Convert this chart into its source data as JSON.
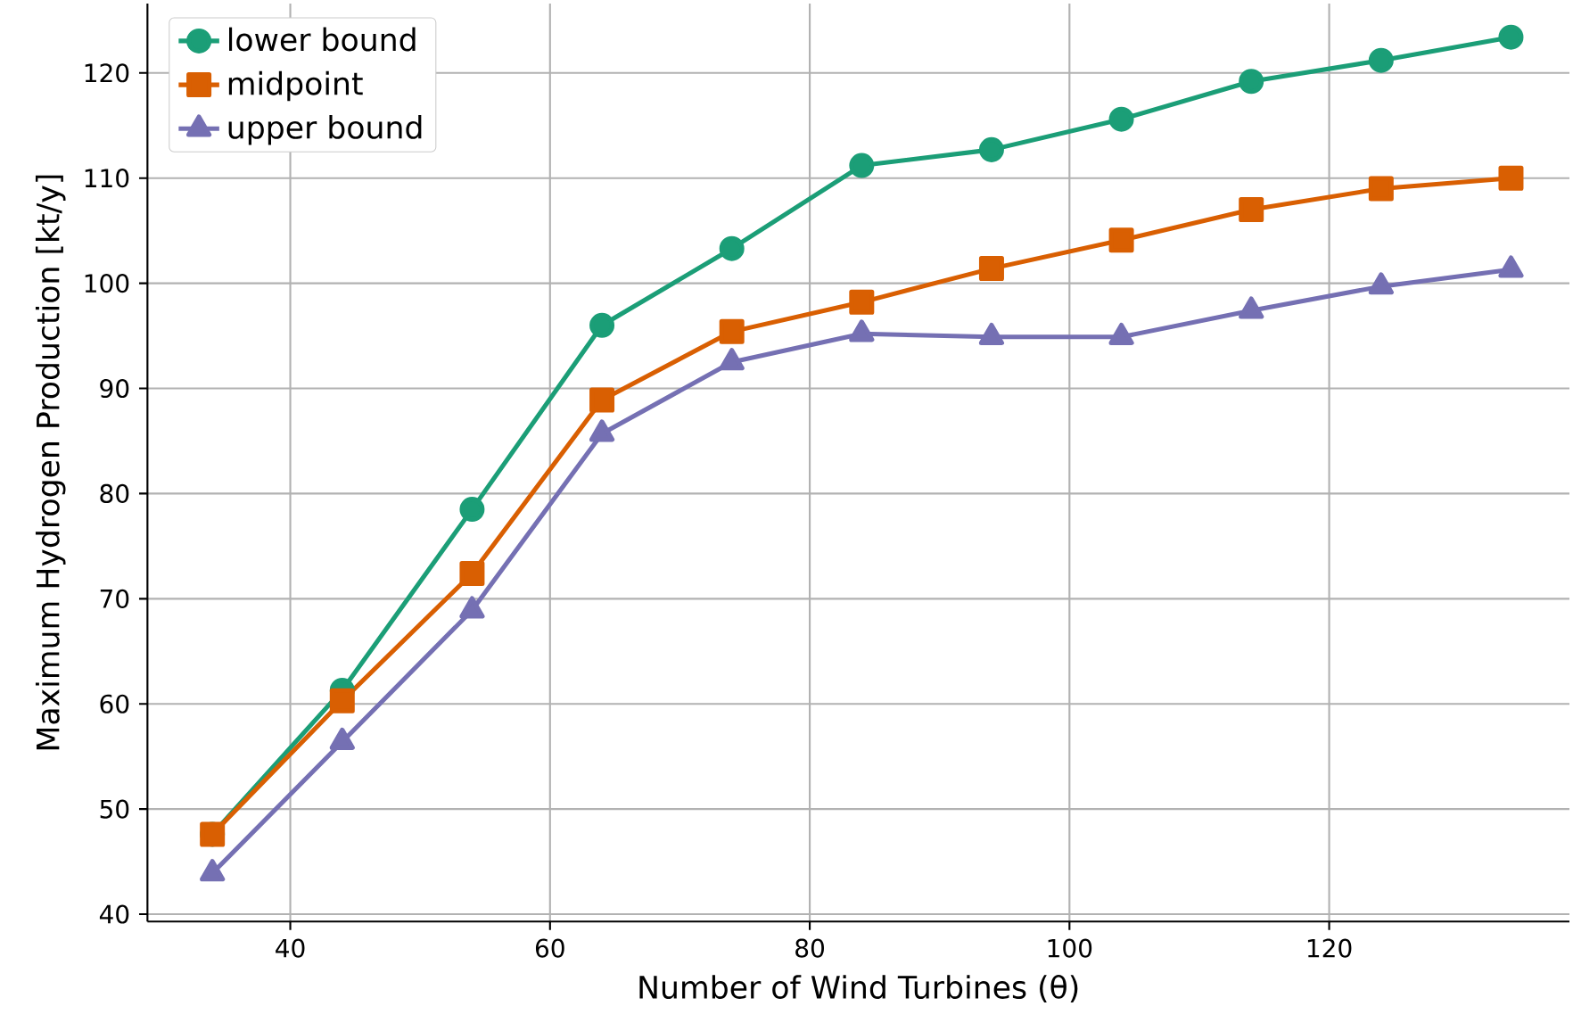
{
  "chart_data": {
    "type": "line",
    "xlabel": "Number of Wind Turbines (θ)",
    "ylabel": "Maximum Hydrogen Production [kt/y]",
    "x": [
      34,
      44,
      54,
      64,
      74,
      84,
      94,
      104,
      114,
      124,
      134
    ],
    "series": [
      {
        "name": "lower bound",
        "color": "#1b9e77",
        "marker": "circle",
        "values": [
          47.6,
          61.3,
          78.5,
          96.0,
          103.3,
          111.2,
          112.7,
          115.6,
          119.2,
          121.2,
          123.4
        ]
      },
      {
        "name": "midpoint",
        "color": "#d95f02",
        "marker": "square",
        "values": [
          47.6,
          60.3,
          72.4,
          88.9,
          95.4,
          98.2,
          101.4,
          104.1,
          107.0,
          109.0,
          110.0
        ]
      },
      {
        "name": "upper bound",
        "color": "#7570b3",
        "marker": "triangle",
        "values": [
          43.9,
          56.4,
          68.9,
          85.7,
          92.5,
          95.2,
          94.9,
          94.9,
          97.4,
          99.7,
          101.3
        ]
      }
    ],
    "xlim": [
      29,
      138.5
    ],
    "ylim": [
      39.3,
      126.6
    ],
    "xticks": [
      40,
      60,
      80,
      100,
      120
    ],
    "yticks": [
      40,
      50,
      60,
      70,
      80,
      90,
      100,
      110,
      120
    ],
    "grid": true,
    "legend": "top left",
    "line_style": "solid"
  }
}
